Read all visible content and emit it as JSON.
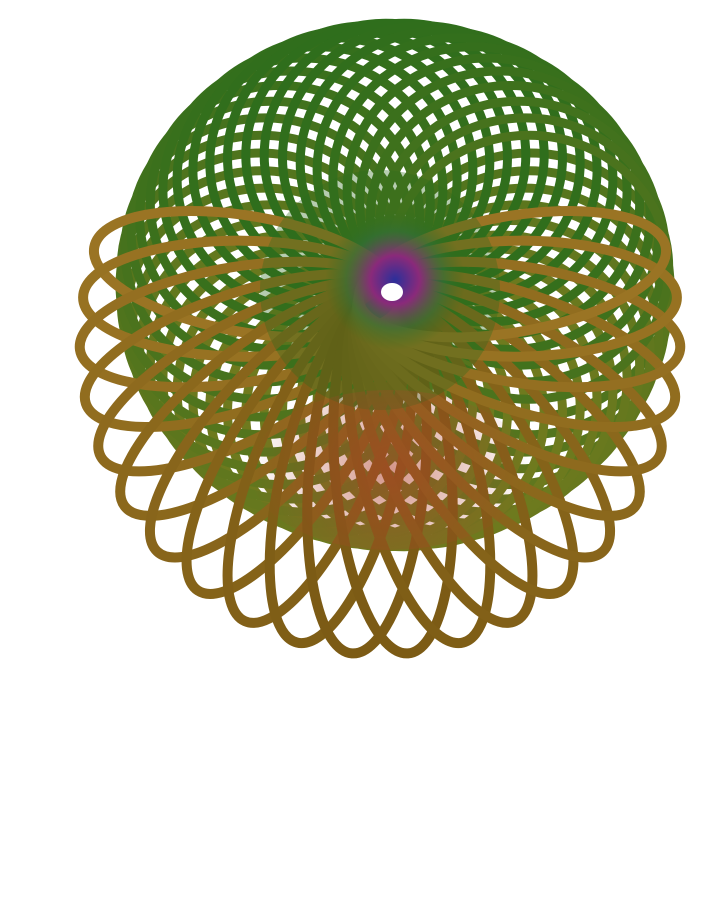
{
  "scene": {
    "subject": "spirograph-torus-knot-tube",
    "background_color": "#ffffff",
    "palette": {
      "top_green": "#2f6e1c",
      "mid_olive": "#6f7a1e",
      "lower_brown": "#7a5a14",
      "outer_gold": "#9a7424",
      "inner_red": "#b0402a",
      "core_blue": "#2b2f9a",
      "core_magenta": "#9a2a80"
    }
  }
}
